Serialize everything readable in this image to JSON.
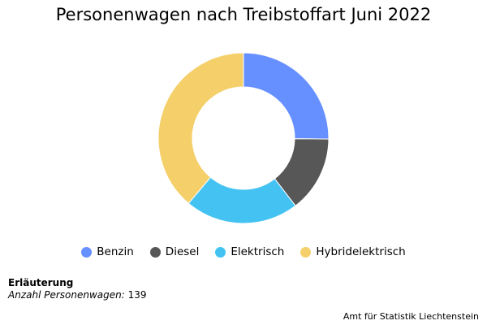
{
  "chart_data": {
    "type": "pie",
    "title": "Personenwagen nach Treibstoffart Juni 2022",
    "categories": [
      "Benzin",
      "Diesel",
      "Elektrisch",
      "Hybridelektrisch"
    ],
    "values": [
      35,
      20,
      30,
      54
    ],
    "colors": [
      "#6690FF",
      "#575757",
      "#44C3F2",
      "#F4CF6A"
    ],
    "legend_position": "bottom"
  },
  "note": {
    "heading": "Erläuterung",
    "label": "Anzahl Personenwagen:",
    "value": "139"
  },
  "source": "Amt für Statistik Liechtenstein"
}
